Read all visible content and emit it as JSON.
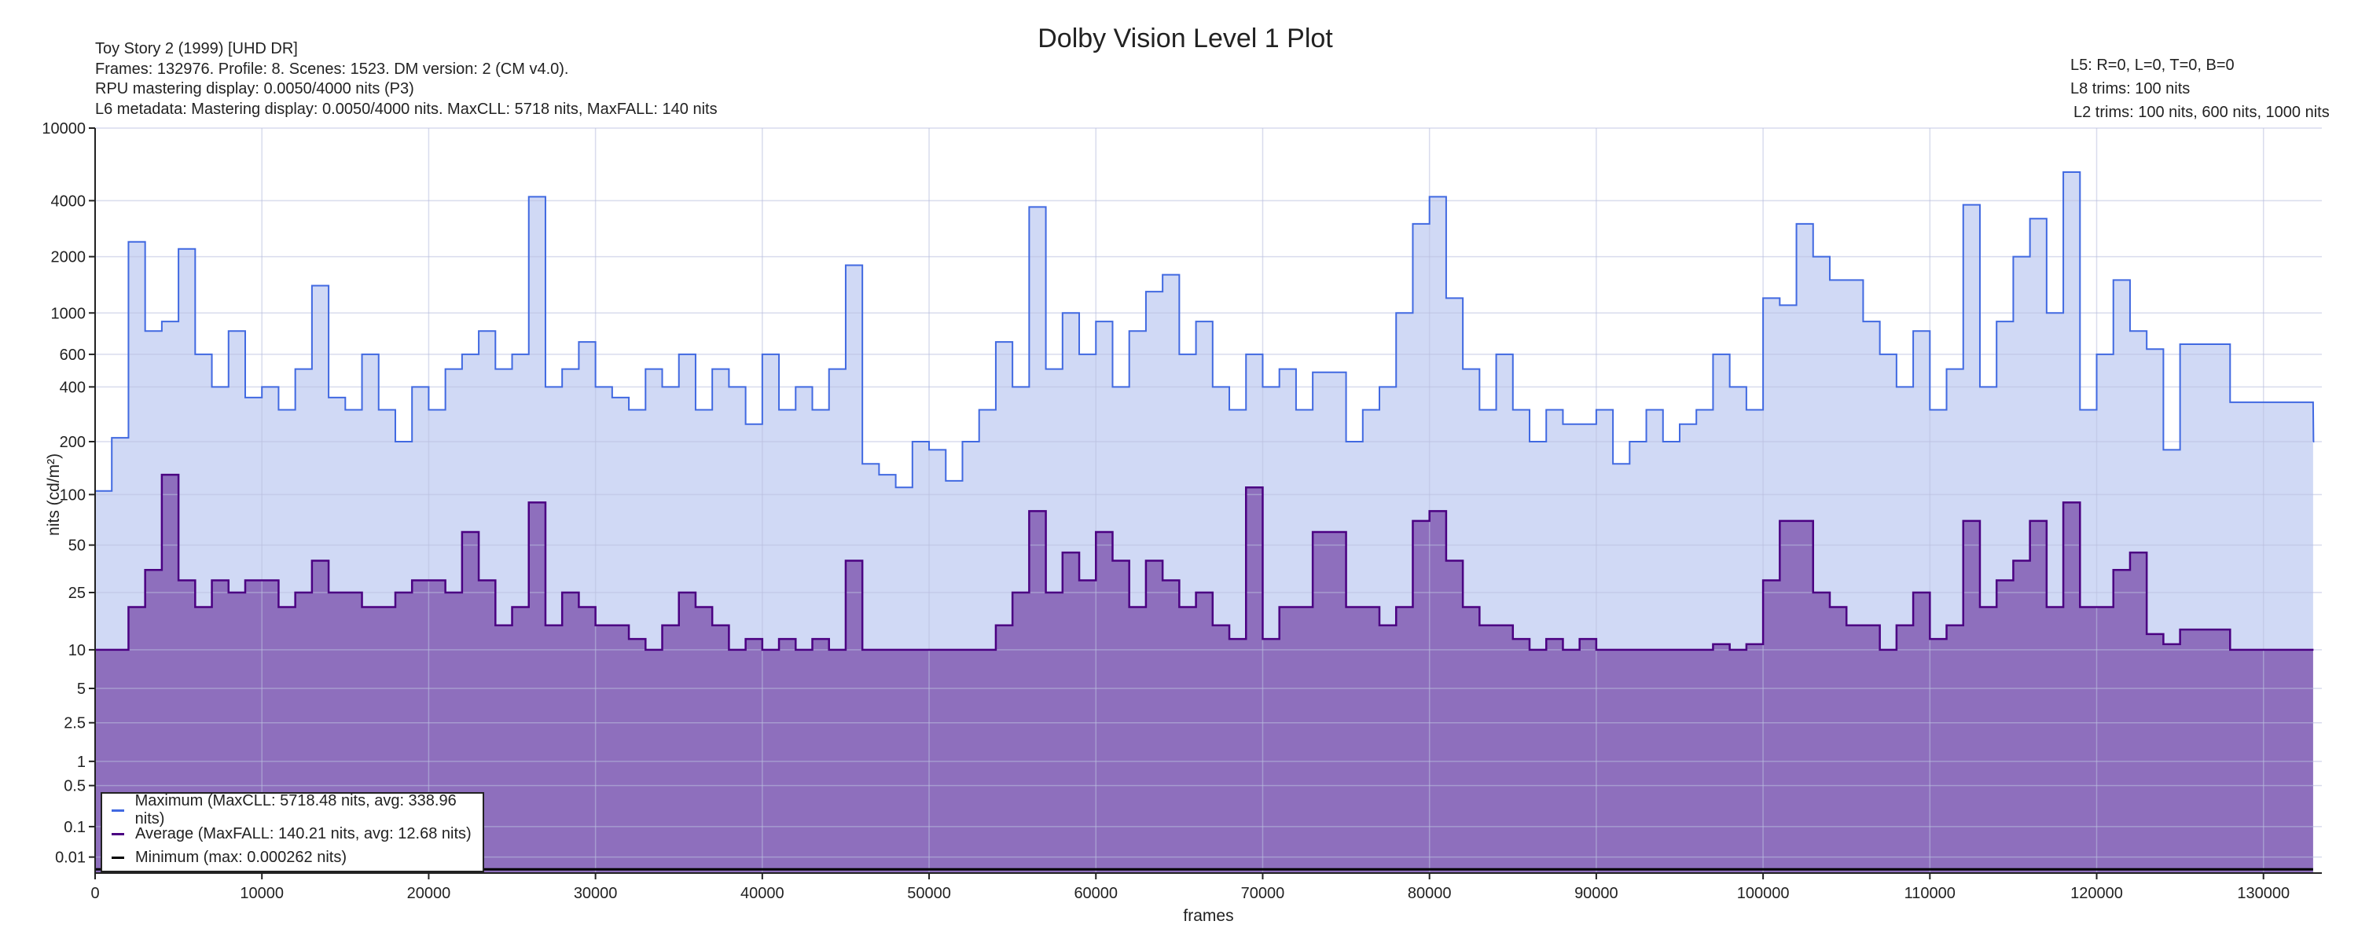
{
  "header": {
    "title": "Dolby Vision Level 1 Plot",
    "info_lines": [
      "Toy Story 2 (1999) [UHD DR]",
      "Frames: 132976. Profile: 8. Scenes: 1523. DM version: 2 (CM v4.0).",
      "RPU mastering display: 0.0050/4000 nits  (P3)",
      "L6 metadata: Mastering display: 0.0050/4000 nits. MaxCLL: 5718 nits, MaxFALL: 140 nits"
    ],
    "right_lines": [
      "L5: R=0, L=0, T=0, B=0",
      "L8 trims: 100 nits",
      "L2 trims: 100 nits, 600 nits, 1000 nits"
    ]
  },
  "colors": {
    "max_line": "#4169e1",
    "max_fill": "#d0d9f5",
    "avg_line": "#4b0082",
    "avg_fill": "#8e6fbd",
    "min_line": "#000000",
    "grid": "#b9c0de"
  },
  "chart_data": {
    "type": "area",
    "title": "Dolby Vision Level 1 Plot",
    "xlabel": "frames",
    "ylabel": "nits (cd/m²)",
    "xlim": [
      0,
      133500
    ],
    "x_ticks": [
      0,
      10000,
      20000,
      30000,
      40000,
      50000,
      60000,
      70000,
      80000,
      90000,
      100000,
      110000,
      120000,
      130000
    ],
    "y_scale": "PQ",
    "ylim": [
      0,
      10000
    ],
    "y_ticks": [
      10000,
      4000,
      2000,
      1000,
      600,
      400,
      200,
      100,
      50,
      25,
      10,
      5,
      2.5,
      1,
      0.5,
      0.1,
      0.01
    ],
    "grid": true,
    "legend_position": "bottom-left",
    "bin_frames": 1000,
    "series": [
      {
        "name": "Maximum",
        "legend": "Maximum (MaxCLL: 5718.48 nits, avg: 338.96 nits)",
        "values": [
          105,
          210,
          2400,
          800,
          900,
          2200,
          600,
          400,
          800,
          350,
          400,
          300,
          500,
          1400,
          350,
          300,
          600,
          300,
          200,
          400,
          300,
          500,
          600,
          800,
          500,
          600,
          4200,
          400,
          500,
          700,
          400,
          350,
          300,
          500,
          400,
          600,
          300,
          500,
          400,
          250,
          600,
          300,
          400,
          300,
          500,
          1800,
          150,
          130,
          110,
          200,
          180,
          120,
          200,
          300,
          700,
          400,
          3700,
          500,
          1000,
          600,
          900,
          400,
          800,
          1300,
          1600,
          600,
          900,
          400,
          300,
          600,
          400,
          500,
          300,
          480,
          480,
          200,
          300,
          400,
          1000,
          3000,
          4200,
          1200,
          500,
          300,
          600,
          300,
          200,
          300,
          250,
          250,
          300,
          150,
          200,
          300,
          200,
          250,
          300,
          600,
          400,
          300,
          1200,
          1100,
          3000,
          2000,
          1500,
          1500,
          900,
          600,
          400,
          800,
          300,
          500,
          3800,
          400,
          900,
          2000,
          3200,
          1000,
          5718,
          300,
          600,
          1500,
          800,
          640,
          180,
          680,
          680,
          680,
          330,
          330,
          330,
          330,
          330,
          200
        ]
      },
      {
        "name": "Average",
        "legend": "Average (MaxFALL: 140.21 nits, avg: 12.68 nits)",
        "values": [
          10,
          10,
          20,
          35,
          130,
          30,
          20,
          30,
          25,
          30,
          30,
          20,
          25,
          40,
          25,
          25,
          20,
          20,
          25,
          30,
          30,
          25,
          60,
          30,
          15,
          20,
          90,
          15,
          25,
          20,
          15,
          15,
          12,
          10,
          15,
          25,
          20,
          15,
          10,
          12,
          10,
          12,
          10,
          12,
          10,
          40,
          10,
          10,
          10,
          10,
          10,
          10,
          10,
          10,
          15,
          25,
          80,
          25,
          45,
          30,
          60,
          40,
          20,
          40,
          30,
          20,
          25,
          15,
          12,
          110,
          12,
          20,
          20,
          60,
          60,
          20,
          20,
          15,
          20,
          70,
          80,
          40,
          20,
          15,
          15,
          12,
          10,
          12,
          10,
          12,
          10,
          10,
          10,
          10,
          10,
          10,
          10,
          11,
          10,
          11,
          30,
          70,
          70,
          25,
          20,
          15,
          15,
          10,
          15,
          25,
          12,
          15,
          70,
          20,
          30,
          40,
          70,
          20,
          90,
          20,
          20,
          35,
          45,
          13,
          11,
          14,
          14,
          14,
          10,
          10,
          10,
          10,
          10,
          10
        ]
      },
      {
        "name": "Minimum",
        "legend": "Minimum (max: 0.000262 nits)",
        "values": [
          0.000262
        ]
      }
    ]
  }
}
